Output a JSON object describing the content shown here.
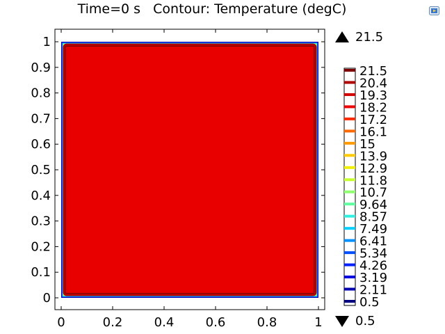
{
  "plot": {
    "title": "Time=0 s   Contour: Temperature (degC)",
    "export_icon": "export-image-icon",
    "legend_max": "21.5",
    "legend_min": "0.5"
  },
  "chart_data": {
    "type": "contour",
    "title": "Time=0 s   Contour: Temperature (degC)",
    "xlim": [
      0,
      1
    ],
    "ylim": [
      0,
      1
    ],
    "x_ticks": [
      "0",
      "0.2",
      "0.4",
      "0.6",
      "0.8",
      "1"
    ],
    "y_ticks": [
      "0",
      "0.1",
      "0.2",
      "0.3",
      "0.4",
      "0.5",
      "0.6",
      "0.7",
      "0.8",
      "0.9",
      "1"
    ],
    "x_tick_values": [
      0,
      0.2,
      0.4,
      0.6,
      0.8,
      1
    ],
    "y_tick_values": [
      0,
      0.1,
      0.2,
      0.3,
      0.4,
      0.5,
      0.6,
      0.7,
      0.8,
      0.9,
      1
    ],
    "interior_value": 21.5,
    "boundary_value": 0.5,
    "contour_levels": [
      21.5,
      20.4,
      19.3,
      18.2,
      17.2,
      16.1,
      15,
      13.9,
      12.9,
      11.8,
      10.7,
      9.64,
      8.57,
      7.49,
      6.41,
      5.34,
      4.26,
      3.19,
      2.11,
      0.5
    ],
    "level_colors": [
      "#7f0000",
      "#b00000",
      "#d40000",
      "#ee0000",
      "#ff2a00",
      "#ff6a00",
      "#ff9a00",
      "#ffcc00",
      "#f0f000",
      "#c8ff30",
      "#90ff70",
      "#60ffa0",
      "#30f0e0",
      "#00d0ff",
      "#0090ff",
      "#0050ff",
      "#0020ff",
      "#0000e0",
      "#0000b0",
      "#000080"
    ],
    "grid": false,
    "legend_position": "right"
  }
}
